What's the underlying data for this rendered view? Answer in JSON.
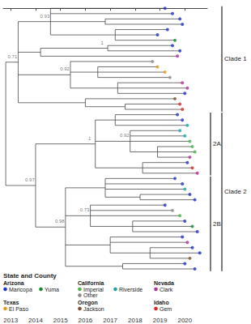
{
  "chart_data": {
    "type": "tree",
    "xlim": [
      2012.7,
      2020.9
    ],
    "xticks": [
      2013,
      2014,
      2015,
      2016,
      2017,
      2018,
      2019,
      2020
    ],
    "grid": false,
    "legend": "lower left",
    "legend_title": "State and County",
    "states": [
      {
        "name": "Arizona",
        "counties": [
          {
            "name": "Maricopa",
            "color": "#2232c8"
          },
          {
            "name": "Yuma",
            "color": "#1a8a3a"
          }
        ]
      },
      {
        "name": "California",
        "counties": [
          {
            "name": "Imperial",
            "color": "#4caf50"
          },
          {
            "name": "Riverside",
            "color": "#1aa6a6"
          },
          {
            "name": "Other",
            "color": "#8c8c8c"
          }
        ]
      },
      {
        "name": "Nevada",
        "counties": [
          {
            "name": "Clark",
            "color": "#b0309a"
          }
        ]
      },
      {
        "name": "Texas",
        "counties": [
          {
            "name": "El Paso",
            "color": "#e39a1c"
          }
        ]
      },
      {
        "name": "Oregon",
        "counties": [
          {
            "name": "Jackson",
            "color": "#7a5230"
          }
        ]
      },
      {
        "name": "Idaho",
        "counties": [
          {
            "name": "Gem",
            "color": "#d62828"
          }
        ]
      }
    ],
    "tree": {
      "t": 2012.8,
      "children": [
        {
          "t": 2013.3,
          "support": 0.71,
          "clade": "Clade 1",
          "children": [
            {
              "t": 2014.6,
              "support": 0.93,
              "children": [
                {
                  "t": 2019.2,
                  "county": "Maricopa"
                },
                {
                  "t": 2019.5,
                  "county": "Maricopa"
                },
                {
                  "t": 2016.8,
                  "children": [
                    {
                      "t": 2019.8,
                      "county": "Maricopa"
                    },
                    {
                      "t": 2019.9,
                      "county": "Maricopa"
                    }
                  ]
                },
                {
                  "t": 2017.2,
                  "children": [
                    {
                      "t": 2019.3,
                      "county": "Maricopa"
                    },
                    {
                      "t": 2018.9,
                      "county": "Maricopa"
                    },
                    {
                      "t": 2019.6,
                      "county": "Yuma"
                    }
                  ]
                }
              ]
            },
            {
              "t": 2014.2,
              "children": [
                {
                  "t": 2016.9,
                  "support": 1,
                  "children": [
                    {
                      "t": 2019.5,
                      "county": "Maricopa"
                    },
                    {
                      "t": 2019.8,
                      "county": "Maricopa"
                    }
                  ]
                },
                {
                  "t": 2019.7,
                  "county": "Clark"
                }
              ]
            },
            {
              "t": 2015.4,
              "support": 0.92,
              "children": [
                {
                  "t": 2018.7,
                  "county": "Other"
                },
                {
                  "t": 2016.5,
                  "children": [
                    {
                      "t": 2018.9,
                      "county": "El Paso"
                    },
                    {
                      "t": 2019.2,
                      "county": "El Paso"
                    },
                    {
                      "t": 2019.4,
                      "county": "Other"
                    }
                  ]
                },
                {
                  "t": 2017.3,
                  "children": [
                    {
                      "t": 2019.9,
                      "county": "Clark"
                    },
                    {
                      "t": 2020.1,
                      "county": "Clark"
                    },
                    {
                      "t": 2020.0,
                      "county": "Maricopa"
                    }
                  ]
                }
              ]
            },
            {
              "t": 2016.0,
              "children": [
                {
                  "t": 2019.6,
                  "county": "Jackson"
                },
                {
                  "t": 2017.6,
                  "children": [
                    {
                      "t": 2019.8,
                      "county": "Gem"
                    },
                    {
                      "t": 2019.9,
                      "county": "Gem"
                    }
                  ]
                }
              ]
            }
          ]
        },
        {
          "t": 2014.0,
          "support": 0.97,
          "clade": "Clade 2",
          "children": [
            {
              "t": 2016.4,
              "support": 1,
              "clade": "2A",
              "children": [
                {
                  "t": 2017.2,
                  "children": [
                    {
                      "t": 2019.7,
                      "county": "Maricopa"
                    },
                    {
                      "t": 2019.9,
                      "county": "Maricopa"
                    },
                    {
                      "t": 2020.1,
                      "county": "Riverside"
                    }
                  ]
                },
                {
                  "t": 2017.8,
                  "support": 0.92,
                  "children": [
                    {
                      "t": 2019.8,
                      "county": "Riverside"
                    },
                    {
                      "t": 2020.0,
                      "county": "Riverside"
                    },
                    {
                      "t": 2020.2,
                      "county": "Imperial"
                    },
                    {
                      "t": 2018.9,
                      "children": [
                        {
                          "t": 2020.3,
                          "county": "Imperial"
                        },
                        {
                          "t": 2020.4,
                          "county": "Imperial"
                        },
                        {
                          "t": 2020.2,
                          "county": "Clark"
                        }
                      ]
                    }
                  ]
                },
                {
                  "t": 2018.3,
                  "children": [
                    {
                      "t": 2020.1,
                      "county": "Maricopa"
                    },
                    {
                      "t": 2020.3,
                      "county": "Gem"
                    },
                    {
                      "t": 2020.5,
                      "county": "Clark"
                    }
                  ]
                }
              ]
            },
            {
              "t": 2015.2,
              "support": 0.98,
              "clade": "2B",
              "children": [
                {
                  "t": 2016.8,
                  "children": [
                    {
                      "t": 2019.6,
                      "county": "Maricopa"
                    },
                    {
                      "t": 2019.9,
                      "county": "Maricopa"
                    },
                    {
                      "t": 2020.0,
                      "county": "Riverside"
                    },
                    {
                      "t": 2018.2,
                      "children": [
                        {
                          "t": 2020.2,
                          "county": "Maricopa"
                        },
                        {
                          "t": 2020.4,
                          "county": "Maricopa"
                        }
                      ]
                    }
                  ]
                },
                {
                  "t": 2016.2,
                  "support": 0.73,
                  "children": [
                    {
                      "t": 2019.2,
                      "county": "Maricopa"
                    },
                    {
                      "t": 2019.5,
                      "county": "Other"
                    },
                    {
                      "t": 2019.8,
                      "county": "Imperial"
                    },
                    {
                      "t": 2017.9,
                      "children": [
                        {
                          "t": 2020.0,
                          "county": "Maricopa"
                        },
                        {
                          "t": 2020.3,
                          "county": "Yuma"
                        },
                        {
                          "t": 2020.5,
                          "county": "Maricopa"
                        }
                      ]
                    }
                  ]
                },
                {
                  "t": 2017.0,
                  "children": [
                    {
                      "t": 2019.9,
                      "county": "Maricopa"
                    },
                    {
                      "t": 2020.1,
                      "county": "Clark"
                    },
                    {
                      "t": 2018.6,
                      "children": [
                        {
                          "t": 2020.3,
                          "county": "Maricopa"
                        },
                        {
                          "t": 2020.6,
                          "county": "Maricopa"
                        },
                        {
                          "t": 2020.2,
                          "county": "Jackson"
                        }
                      ]
                    }
                  ]
                },
                {
                  "t": 2017.5,
                  "children": [
                    {
                      "t": 2020.0,
                      "county": "Maricopa"
                    },
                    {
                      "t": 2020.4,
                      "county": "Maricopa"
                    }
                  ]
                }
              ]
            }
          ]
        }
      ]
    }
  }
}
